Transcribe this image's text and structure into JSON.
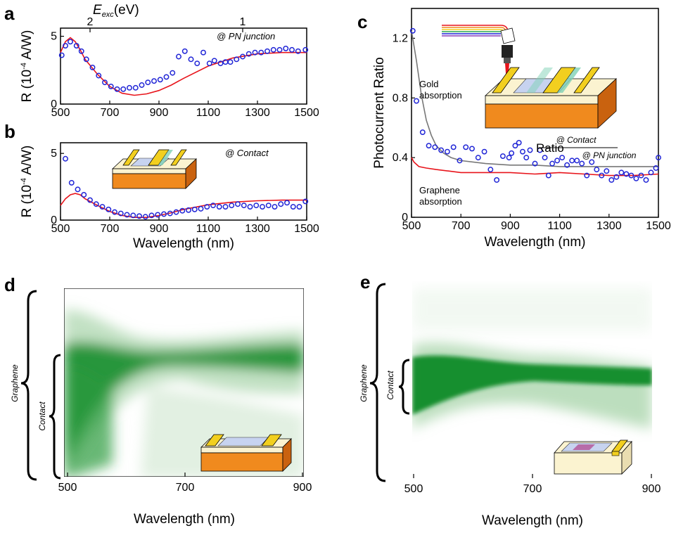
{
  "panels": {
    "a": "a",
    "b": "b",
    "c": "c",
    "d": "d",
    "e": "e"
  },
  "colors": {
    "data_markers": "#1f24d6",
    "model_line": "#e8141b",
    "gold_line": "#777777",
    "heatmap": "#0a7a1f",
    "substrate": "#f08a1e",
    "gold_pad": "#f2cf1f"
  },
  "chart_data": [
    {
      "panel": "a",
      "type": "scatter",
      "ylabel": "R (10-4 A/W)",
      "ylabel_parts": {
        "a": "R (10",
        "sup": "-4",
        "b": " A/W)"
      },
      "annotation": "@ PN junction",
      "top_axis": {
        "label_main": "E",
        "label_sub": "exc",
        "label_unit": "(eV)",
        "ticks": [
          2,
          1
        ]
      },
      "xlim": [
        500,
        1500
      ],
      "ylim": [
        0,
        5.6
      ],
      "xticks": [
        500,
        700,
        900,
        1100,
        1300,
        1500
      ],
      "yticks": [
        0,
        5
      ],
      "measured": {
        "x": [
          505,
          520,
          540,
          565,
          585,
          605,
          630,
          655,
          680,
          705,
          730,
          755,
          780,
          805,
          830,
          855,
          880,
          905,
          930,
          955,
          980,
          1005,
          1030,
          1055,
          1080,
          1105,
          1125,
          1150,
          1170,
          1190,
          1215,
          1240,
          1265,
          1290,
          1315,
          1340,
          1365,
          1390,
          1415,
          1440,
          1465,
          1495
        ],
        "y": [
          3.6,
          4.3,
          4.6,
          4.3,
          3.9,
          3.3,
          2.7,
          2.1,
          1.6,
          1.3,
          1.1,
          1.1,
          1.2,
          1.2,
          1.4,
          1.6,
          1.7,
          1.8,
          2.0,
          2.3,
          3.5,
          3.9,
          3.3,
          3.0,
          3.8,
          3.0,
          3.2,
          3.0,
          3.1,
          3.1,
          3.3,
          3.5,
          3.7,
          3.8,
          3.8,
          3.9,
          4.0,
          4.0,
          4.1,
          4.0,
          3.9,
          4.0
        ]
      },
      "model": {
        "x": [
          500,
          520,
          540,
          560,
          580,
          600,
          650,
          700,
          750,
          800,
          850,
          900,
          950,
          1000,
          1100,
          1200,
          1300,
          1400,
          1500
        ],
        "y": [
          3.8,
          4.6,
          4.9,
          4.6,
          4.0,
          3.3,
          2.2,
          1.3,
          0.8,
          0.65,
          0.75,
          1.0,
          1.4,
          1.9,
          2.8,
          3.4,
          3.7,
          3.8,
          3.8
        ]
      }
    },
    {
      "panel": "b",
      "type": "scatter",
      "xlabel": "Wavelength (nm)",
      "ylabel": "R (10-4 A/W)",
      "ylabel_parts": {
        "a": "R (10",
        "sup": "-4",
        "b": " A/W)"
      },
      "annotation": "@ Contact",
      "xlim": [
        500,
        1500
      ],
      "ylim": [
        0,
        5.8
      ],
      "xticks": [
        500,
        700,
        900,
        1100,
        1300,
        1500
      ],
      "yticks": [
        0,
        5
      ],
      "measured": {
        "x": [
          520,
          545,
          570,
          595,
          620,
          645,
          670,
          695,
          720,
          745,
          770,
          795,
          820,
          845,
          870,
          895,
          920,
          945,
          970,
          995,
          1020,
          1045,
          1070,
          1095,
          1120,
          1145,
          1170,
          1195,
          1220,
          1245,
          1270,
          1295,
          1320,
          1345,
          1370,
          1395,
          1420,
          1445,
          1470,
          1495
        ],
        "y": [
          4.6,
          2.8,
          2.3,
          1.9,
          1.5,
          1.2,
          1.0,
          0.8,
          0.6,
          0.5,
          0.4,
          0.35,
          0.3,
          0.25,
          0.35,
          0.4,
          0.45,
          0.5,
          0.6,
          0.7,
          0.75,
          0.8,
          0.85,
          1.0,
          1.1,
          1.0,
          1.0,
          1.1,
          1.2,
          1.1,
          1.0,
          1.1,
          1.0,
          1.1,
          1.0,
          1.2,
          1.3,
          1.0,
          1.0,
          1.4
        ]
      },
      "model": {
        "x": [
          500,
          520,
          540,
          560,
          580,
          600,
          650,
          700,
          750,
          800,
          850,
          900,
          950,
          1000,
          1100,
          1200,
          1300,
          1400,
          1500
        ],
        "y": [
          1.1,
          1.6,
          1.9,
          2.0,
          1.9,
          1.6,
          1.1,
          0.65,
          0.35,
          0.2,
          0.2,
          0.35,
          0.55,
          0.8,
          1.15,
          1.35,
          1.45,
          1.5,
          1.5
        ]
      }
    },
    {
      "panel": "c",
      "type": "scatter",
      "xlabel": "Wavelength (nm)",
      "ylabel": "Photocurrent Ratio",
      "xlim": [
        500,
        1500
      ],
      "ylim": [
        0,
        1.4
      ],
      "xticks": [
        500,
        700,
        900,
        1100,
        1300,
        1500
      ],
      "yticks": [
        0,
        0.4,
        0.8,
        1.2
      ],
      "ytick_labels": [
        "0",
        "0.4",
        "0.8",
        "1.2"
      ],
      "ratio_label": "Ratio",
      "ratio_num": "@ Contact",
      "ratio_den": "@ PN junction",
      "gold_label": [
        "Gold",
        "absorption"
      ],
      "graphene_label": [
        "Graphene",
        "absorption"
      ],
      "measured": {
        "x": [
          505,
          520,
          545,
          570,
          595,
          620,
          645,
          670,
          695,
          720,
          745,
          770,
          795,
          820,
          845,
          870,
          895,
          905,
          920,
          935,
          950,
          965,
          980,
          1000,
          1020,
          1040,
          1055,
          1070,
          1090,
          1110,
          1130,
          1150,
          1170,
          1190,
          1210,
          1230,
          1250,
          1270,
          1290,
          1310,
          1330,
          1350,
          1370,
          1390,
          1410,
          1430,
          1450,
          1470,
          1490,
          1500
        ],
        "y": [
          1.25,
          0.78,
          0.57,
          0.48,
          0.47,
          0.45,
          0.44,
          0.47,
          0.38,
          0.47,
          0.46,
          0.4,
          0.44,
          0.32,
          0.25,
          0.41,
          0.4,
          0.43,
          0.48,
          0.5,
          0.44,
          0.4,
          0.45,
          0.36,
          0.45,
          0.4,
          0.28,
          0.36,
          0.38,
          0.4,
          0.35,
          0.38,
          0.38,
          0.36,
          0.28,
          0.37,
          0.32,
          0.28,
          0.31,
          0.25,
          0.27,
          0.3,
          0.29,
          0.28,
          0.26,
          0.28,
          0.25,
          0.3,
          0.33,
          0.4
        ]
      },
      "gold_model": {
        "x": [
          500,
          520,
          540,
          560,
          580,
          600,
          630,
          660,
          700,
          800,
          900,
          1000,
          1100,
          1200,
          1300,
          1400,
          1500
        ],
        "y": [
          1.25,
          1.05,
          0.82,
          0.65,
          0.55,
          0.48,
          0.43,
          0.4,
          0.38,
          0.36,
          0.35,
          0.35,
          0.34,
          0.34,
          0.34,
          0.34,
          0.34
        ]
      },
      "graphene_model": {
        "x": [
          500,
          510,
          530,
          560,
          600,
          650,
          700,
          800,
          900,
          1000,
          1100,
          1200,
          1300,
          1400,
          1500
        ],
        "y": [
          0.4,
          0.37,
          0.34,
          0.33,
          0.32,
          0.31,
          0.3,
          0.3,
          0.3,
          0.29,
          0.3,
          0.29,
          0.28,
          0.28,
          0.29
        ]
      }
    },
    {
      "panel": "d",
      "type": "heatmap",
      "xlabel": "Wavelength (nm)",
      "xticks": [
        500,
        700,
        900
      ],
      "brace_labels": [
        "Graphene",
        "Contact"
      ]
    },
    {
      "panel": "e",
      "type": "heatmap",
      "xlabel": "Wavelength (nm)",
      "xticks": [
        500,
        700,
        900
      ],
      "brace_labels": [
        "Graphene",
        "Contact"
      ]
    }
  ]
}
